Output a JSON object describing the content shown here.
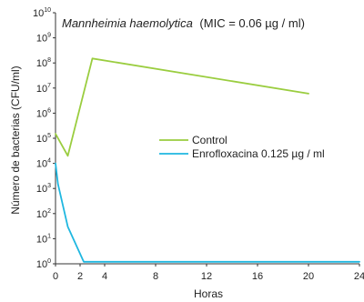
{
  "chart_data": {
    "type": "line",
    "title_species": "Mannheimia haemolytica",
    "title_rest": "(MIC = 0.06 µg / ml)",
    "xlabel": "Horas",
    "ylabel": "Número de bacterias (CFU/ml)",
    "y_scale": "log10",
    "xlim": [
      0,
      24
    ],
    "ylim": [
      1,
      10000000000
    ],
    "x_ticks": [
      0,
      2,
      4,
      8,
      12,
      16,
      20,
      24
    ],
    "y_tick_exponents": [
      0,
      1,
      2,
      3,
      4,
      5,
      6,
      7,
      8,
      9,
      10
    ],
    "y_tick_base": "10",
    "grid": false,
    "legend_position": "center-right",
    "series": [
      {
        "name": "Control",
        "color": "#9acd3f",
        "x": [
          0,
          1,
          3,
          20
        ],
        "y": [
          150000,
          20000,
          150000000,
          6000000
        ]
      },
      {
        "name": "Enrofloxacina 0.125 µg / ml",
        "color": "#1fb7e0",
        "x": [
          0,
          0.2,
          1,
          2.3,
          24
        ],
        "y": [
          10000,
          1500,
          30,
          1.2,
          1.2
        ]
      }
    ]
  }
}
